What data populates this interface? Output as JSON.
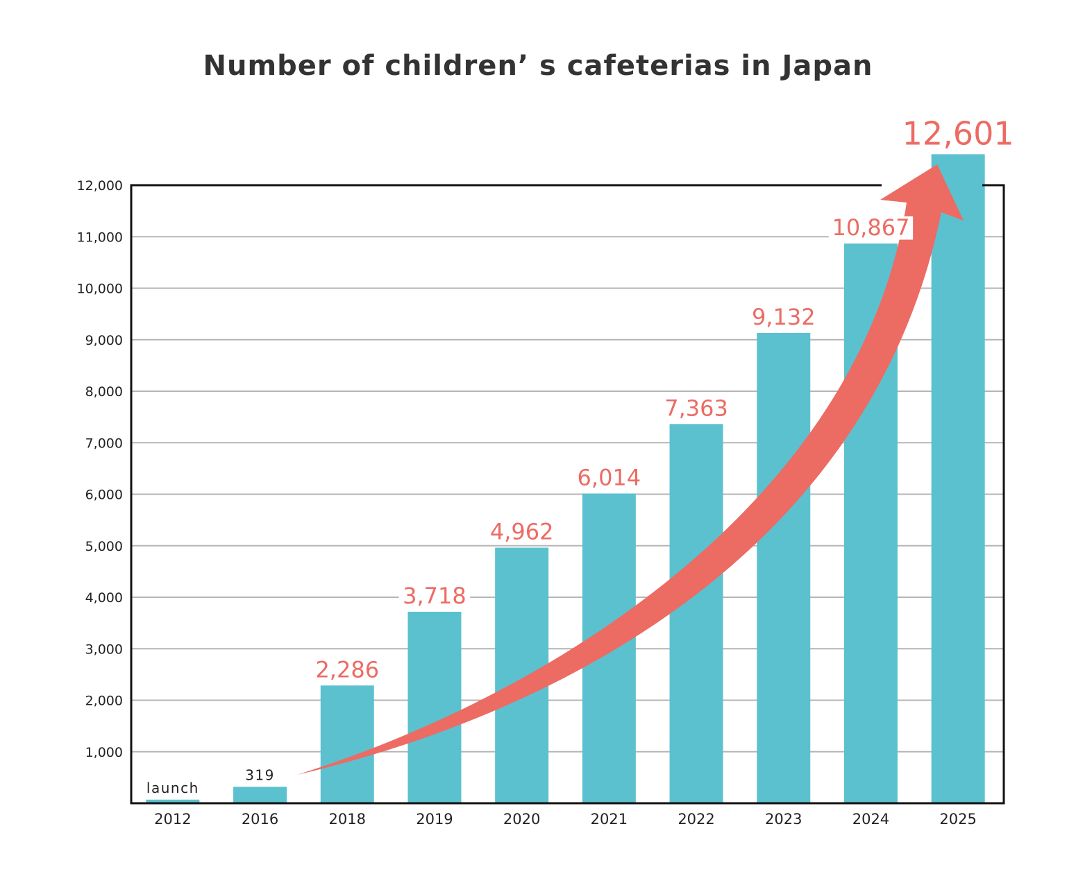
{
  "chart_data": {
    "type": "bar",
    "title": "Number of children’ s cafeterias in Japan",
    "xlabel": "",
    "ylabel": "",
    "categories": [
      "2012",
      "2016",
      "2018",
      "2019",
      "2020",
      "2021",
      "2022",
      "2023",
      "2024",
      "2025"
    ],
    "values": [
      70,
      319,
      2286,
      3718,
      4962,
      6014,
      7363,
      9132,
      10867,
      12601
    ],
    "data_labels": [
      "launch",
      "319",
      "2,286",
      "3,718",
      "4,962",
      "6,014",
      "7,363",
      "9,132",
      "10,867",
      "12,601"
    ],
    "ylim": [
      0,
      12000
    ],
    "yticks": [
      1000,
      2000,
      3000,
      4000,
      5000,
      6000,
      7000,
      8000,
      9000,
      10000,
      11000,
      12000
    ],
    "ytick_labels": [
      "1,000",
      "2,000",
      "3,000",
      "4,000",
      "5,000",
      "6,000",
      "7,000",
      "8,000",
      "9,000",
      "10,000",
      "11,000",
      "12,000"
    ],
    "grid": true,
    "annotation": "growth arrow from 2016 to 2025",
    "colors": {
      "bar": "#5bc1cf",
      "label_highlight": "#ec6b63",
      "label_plain": "#222222",
      "grid": "#b5b5b5",
      "arrow": "#ec6b63"
    }
  }
}
